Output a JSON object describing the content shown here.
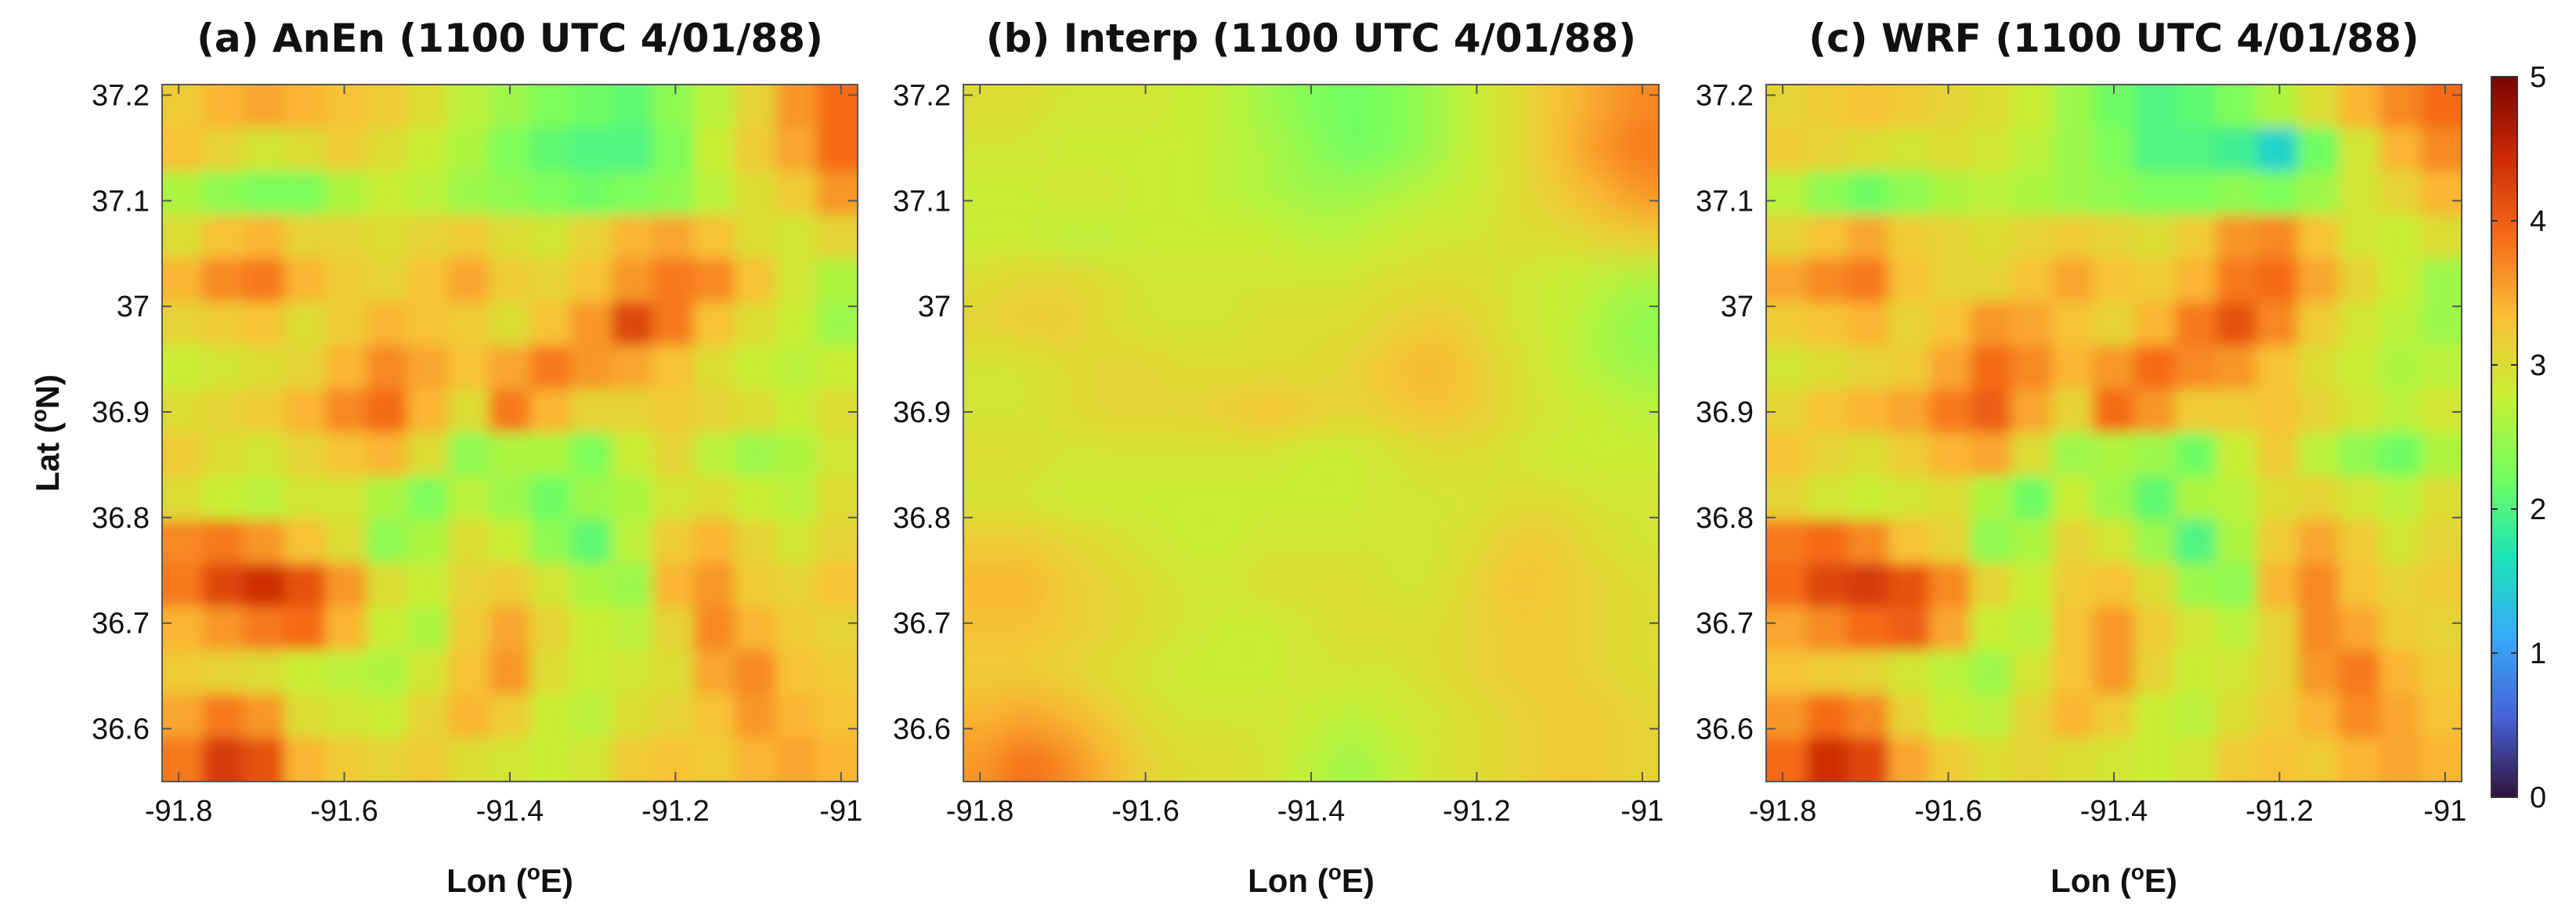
{
  "chart_data": {
    "type": "heatmap",
    "colorbar": {
      "range": [
        0,
        5
      ],
      "ticks": [
        "0",
        "1",
        "2",
        "3",
        "4",
        "5"
      ],
      "colormap": [
        "#30123b",
        "#4662d7",
        "#36aaf9",
        "#1ae4b6",
        "#72fe5e",
        "#c7ef34",
        "#fabf36",
        "#f66b19",
        "#cb2a04",
        "#7a0403"
      ]
    },
    "panels": [
      {
        "title": "(a) AnEn (1100 UTC 4/01/88)",
        "xlabel_main": "Lon (",
        "xlabel_sup": "o",
        "xlabel_end": "E)",
        "ylabel_main": "Lat (",
        "ylabel_sup": "o",
        "ylabel_end": "N)",
        "xlim": [
          -91.82,
          -90.98
        ],
        "ylim": [
          36.55,
          37.21
        ],
        "xticks": [
          "-91.8",
          "-91.6",
          "-91.4",
          "-91.2",
          "-91"
        ],
        "yticks": [
          "36.6",
          "36.7",
          "36.8",
          "36.9",
          "37",
          "37.1",
          "37.2"
        ],
        "field": [
          [
            3.2,
            3.4,
            3.5,
            3.4,
            3.3,
            3.2,
            3.0,
            2.7,
            2.5,
            2.3,
            2.2,
            2.1,
            2.4,
            2.7,
            3.1,
            3.6,
            3.9
          ],
          [
            3.3,
            3.1,
            2.9,
            3.0,
            3.2,
            3.0,
            2.8,
            2.6,
            2.3,
            2.1,
            2.0,
            2.0,
            2.3,
            2.8,
            3.2,
            3.5,
            3.9
          ],
          [
            2.6,
            2.4,
            2.3,
            2.3,
            2.6,
            2.8,
            2.7,
            2.5,
            2.4,
            2.3,
            2.2,
            2.3,
            2.4,
            2.7,
            3.0,
            3.2,
            3.6
          ],
          [
            3.0,
            3.3,
            3.4,
            3.1,
            3.1,
            3.0,
            3.1,
            3.2,
            3.0,
            2.9,
            3.1,
            3.4,
            3.5,
            3.3,
            3.0,
            2.9,
            3.1
          ],
          [
            3.4,
            3.7,
            3.8,
            3.4,
            3.2,
            3.1,
            3.3,
            3.5,
            3.2,
            3.1,
            3.3,
            3.6,
            3.8,
            3.7,
            3.3,
            2.9,
            2.6
          ],
          [
            3.1,
            3.2,
            3.3,
            3.0,
            3.2,
            3.4,
            3.3,
            3.2,
            3.0,
            3.3,
            3.6,
            4.2,
            3.8,
            3.3,
            3.0,
            2.8,
            2.5
          ],
          [
            2.8,
            2.9,
            3.0,
            3.1,
            3.4,
            3.7,
            3.5,
            3.3,
            3.5,
            3.8,
            3.6,
            3.5,
            3.3,
            3.0,
            2.8,
            2.7,
            2.8
          ],
          [
            3.0,
            3.1,
            3.2,
            3.4,
            3.7,
            3.9,
            3.4,
            3.0,
            3.8,
            3.4,
            3.1,
            3.1,
            3.2,
            3.1,
            3.0,
            2.8,
            3.0
          ],
          [
            3.2,
            3.0,
            2.9,
            3.1,
            3.3,
            3.4,
            3.0,
            2.4,
            2.6,
            2.6,
            2.3,
            2.8,
            3.1,
            2.7,
            2.5,
            2.6,
            2.9
          ],
          [
            3.0,
            2.8,
            2.7,
            2.9,
            2.9,
            2.6,
            2.3,
            2.7,
            2.5,
            2.2,
            2.5,
            2.6,
            2.9,
            3.0,
            2.8,
            2.7,
            3.0
          ],
          [
            3.7,
            3.8,
            3.6,
            3.3,
            3.0,
            2.4,
            2.6,
            3.0,
            2.8,
            2.4,
            2.1,
            2.7,
            3.2,
            3.4,
            3.1,
            2.9,
            3.1
          ],
          [
            3.8,
            4.2,
            4.4,
            4.1,
            3.6,
            3.0,
            2.8,
            3.1,
            3.2,
            2.9,
            2.6,
            2.5,
            3.4,
            3.6,
            3.2,
            3.1,
            3.3
          ],
          [
            3.4,
            3.6,
            3.8,
            3.9,
            3.4,
            2.8,
            2.6,
            3.2,
            3.5,
            3.1,
            2.8,
            2.7,
            3.1,
            3.7,
            3.4,
            3.2,
            3.1
          ],
          [
            3.2,
            3.1,
            3.0,
            2.8,
            2.7,
            2.6,
            2.9,
            3.3,
            3.6,
            3.0,
            2.8,
            2.9,
            3.0,
            3.5,
            3.7,
            3.3,
            3.2
          ],
          [
            3.5,
            3.8,
            3.6,
            3.0,
            2.9,
            2.8,
            3.1,
            3.4,
            3.2,
            2.8,
            2.7,
            3.0,
            3.1,
            3.3,
            3.6,
            3.4,
            3.3
          ],
          [
            3.8,
            4.3,
            4.1,
            3.4,
            3.2,
            3.1,
            3.2,
            3.0,
            2.9,
            2.8,
            2.9,
            3.2,
            3.3,
            3.2,
            3.4,
            3.5,
            3.4
          ]
        ]
      },
      {
        "title": "(b) Interp (1100 UTC 4/01/88)",
        "xlabel_main": "Lon (",
        "xlabel_sup": "o",
        "xlabel_end": "E)",
        "ylabel_main": "",
        "ylabel_sup": "",
        "ylabel_end": "",
        "xlim": [
          -91.82,
          -90.98
        ],
        "ylim": [
          36.55,
          37.21
        ],
        "xticks": [
          "-91.8",
          "-91.6",
          "-91.4",
          "-91.2",
          "-91"
        ],
        "yticks": [
          "36.6",
          "36.7",
          "36.8",
          "36.9",
          "37",
          "37.1",
          "37.2"
        ],
        "field": [
          [
            3.0,
            3.0,
            2.9,
            2.9,
            2.9,
            2.8,
            2.7,
            2.5,
            2.3,
            2.2,
            2.3,
            2.5,
            2.8,
            3.0,
            3.3,
            3.5,
            3.7
          ],
          [
            2.9,
            2.9,
            2.8,
            2.8,
            2.8,
            2.8,
            2.7,
            2.6,
            2.4,
            2.2,
            2.3,
            2.5,
            2.8,
            3.0,
            3.3,
            3.6,
            3.8
          ],
          [
            2.8,
            2.8,
            2.9,
            2.9,
            2.8,
            2.8,
            2.7,
            2.6,
            2.5,
            2.5,
            2.6,
            2.7,
            2.8,
            3.0,
            3.2,
            3.4,
            3.6
          ],
          [
            2.8,
            2.8,
            2.7,
            2.7,
            2.8,
            2.8,
            2.8,
            2.8,
            2.7,
            2.7,
            2.8,
            2.9,
            2.9,
            3.0,
            3.0,
            3.1,
            3.2
          ],
          [
            3.0,
            3.1,
            3.1,
            3.0,
            2.9,
            2.9,
            2.9,
            2.9,
            2.9,
            2.9,
            3.0,
            3.0,
            3.0,
            2.9,
            2.8,
            2.7,
            2.6
          ],
          [
            3.1,
            3.2,
            3.2,
            3.0,
            2.9,
            2.9,
            2.9,
            3.0,
            3.0,
            3.0,
            3.1,
            3.2,
            3.1,
            2.9,
            2.8,
            2.6,
            2.4
          ],
          [
            2.9,
            2.9,
            3.0,
            3.1,
            3.1,
            3.0,
            3.0,
            3.0,
            3.0,
            3.1,
            3.3,
            3.4,
            3.2,
            3.0,
            2.8,
            2.6,
            2.5
          ],
          [
            2.9,
            2.9,
            3.0,
            3.1,
            3.1,
            3.1,
            3.2,
            3.3,
            3.2,
            3.1,
            3.2,
            3.3,
            3.2,
            3.0,
            2.9,
            2.8,
            2.7
          ],
          [
            3.0,
            3.0,
            2.9,
            2.9,
            2.9,
            2.9,
            2.9,
            2.9,
            2.8,
            2.8,
            2.9,
            3.0,
            3.0,
            2.9,
            2.8,
            2.8,
            2.8
          ],
          [
            2.9,
            2.9,
            2.8,
            2.8,
            2.8,
            2.8,
            2.8,
            2.8,
            2.8,
            2.8,
            2.9,
            2.9,
            2.9,
            3.0,
            3.0,
            2.9,
            2.9
          ],
          [
            3.2,
            3.2,
            3.1,
            3.0,
            2.9,
            2.8,
            2.8,
            2.9,
            2.9,
            2.9,
            2.9,
            2.9,
            3.0,
            3.2,
            3.2,
            3.0,
            2.9
          ],
          [
            3.4,
            3.4,
            3.2,
            3.1,
            3.0,
            2.9,
            2.9,
            3.0,
            3.0,
            3.0,
            2.9,
            2.9,
            3.1,
            3.3,
            3.2,
            3.1,
            3.0
          ],
          [
            3.3,
            3.3,
            3.2,
            3.1,
            3.0,
            2.9,
            2.8,
            2.8,
            2.9,
            3.0,
            3.0,
            3.0,
            3.1,
            3.2,
            3.2,
            3.1,
            3.0
          ],
          [
            3.2,
            3.2,
            3.1,
            3.0,
            2.9,
            2.8,
            2.8,
            2.8,
            2.9,
            2.9,
            2.9,
            3.0,
            3.1,
            3.2,
            3.2,
            3.1,
            3.0
          ],
          [
            3.4,
            3.5,
            3.4,
            3.2,
            3.0,
            2.9,
            2.9,
            2.9,
            2.8,
            2.7,
            2.8,
            2.9,
            3.0,
            3.1,
            3.2,
            3.2,
            3.1
          ],
          [
            3.6,
            3.9,
            3.7,
            3.4,
            3.1,
            3.0,
            3.0,
            2.9,
            2.7,
            2.5,
            2.7,
            2.9,
            3.0,
            3.1,
            3.2,
            3.2,
            3.1
          ]
        ]
      },
      {
        "title": "(c) WRF (1100 UTC 4/01/88)",
        "xlabel_main": "Lon (",
        "xlabel_sup": "o",
        "xlabel_end": "E)",
        "ylabel_main": "",
        "ylabel_sup": "",
        "ylabel_end": "",
        "xlim": [
          -91.82,
          -90.98
        ],
        "ylim": [
          36.55,
          37.21
        ],
        "xticks": [
          "-91.8",
          "-91.6",
          "-91.4",
          "-91.2",
          "-91"
        ],
        "yticks": [
          "36.6",
          "36.7",
          "36.8",
          "36.9",
          "37",
          "37.1",
          "37.2"
        ],
        "field": [
          [
            3.1,
            3.2,
            3.3,
            3.2,
            3.1,
            3.0,
            2.8,
            2.5,
            2.2,
            2.0,
            2.1,
            2.3,
            2.6,
            3.0,
            3.4,
            3.7,
            3.9
          ],
          [
            3.2,
            3.1,
            3.0,
            2.9,
            3.0,
            2.9,
            2.7,
            2.5,
            2.3,
            2.0,
            2.0,
            1.9,
            1.5,
            2.2,
            2.9,
            3.4,
            3.7
          ],
          [
            2.7,
            2.4,
            2.2,
            2.4,
            2.6,
            2.7,
            2.6,
            2.5,
            2.4,
            2.3,
            2.3,
            2.4,
            2.3,
            2.5,
            2.9,
            3.1,
            3.4
          ],
          [
            3.1,
            3.3,
            3.5,
            3.2,
            3.1,
            3.0,
            3.1,
            3.2,
            3.1,
            3.0,
            3.2,
            3.6,
            3.7,
            3.3,
            2.9,
            2.8,
            3.0
          ],
          [
            3.5,
            3.7,
            3.8,
            3.3,
            3.1,
            3.1,
            3.3,
            3.5,
            3.3,
            3.2,
            3.4,
            3.8,
            3.9,
            3.5,
            3.1,
            2.8,
            2.5
          ],
          [
            3.2,
            3.3,
            3.4,
            3.1,
            3.3,
            3.6,
            3.5,
            3.3,
            3.1,
            3.4,
            3.8,
            4.1,
            3.7,
            3.2,
            2.9,
            2.7,
            2.5
          ],
          [
            2.9,
            3.0,
            3.1,
            3.2,
            3.5,
            3.9,
            3.7,
            3.4,
            3.6,
            3.9,
            3.7,
            3.6,
            3.3,
            3.0,
            2.8,
            2.6,
            2.7
          ],
          [
            3.1,
            3.3,
            3.4,
            3.5,
            3.8,
            4.0,
            3.5,
            3.1,
            3.9,
            3.6,
            3.2,
            3.2,
            3.3,
            3.1,
            2.9,
            2.7,
            2.9
          ],
          [
            3.3,
            3.1,
            3.0,
            3.2,
            3.4,
            3.5,
            3.0,
            2.5,
            2.6,
            2.5,
            2.2,
            2.8,
            3.2,
            2.7,
            2.4,
            2.2,
            2.6
          ],
          [
            3.1,
            2.9,
            2.8,
            2.9,
            3.0,
            2.6,
            2.2,
            2.8,
            2.5,
            2.1,
            2.6,
            2.7,
            3.0,
            3.1,
            2.9,
            2.7,
            3.0
          ],
          [
            3.8,
            3.9,
            3.7,
            3.3,
            3.1,
            2.4,
            2.6,
            3.1,
            2.9,
            2.5,
            2.0,
            2.6,
            3.2,
            3.5,
            3.2,
            2.9,
            3.1
          ],
          [
            3.9,
            4.2,
            4.3,
            4.1,
            3.7,
            3.1,
            2.8,
            3.2,
            3.3,
            3.0,
            2.5,
            2.4,
            3.4,
            3.7,
            3.3,
            3.1,
            3.2
          ],
          [
            3.5,
            3.7,
            3.9,
            4.0,
            3.5,
            2.8,
            2.7,
            3.3,
            3.6,
            3.2,
            2.9,
            2.7,
            3.1,
            3.7,
            3.5,
            3.2,
            3.1
          ],
          [
            3.3,
            3.2,
            3.1,
            2.9,
            2.7,
            2.5,
            2.9,
            3.3,
            3.6,
            3.1,
            2.8,
            2.9,
            3.1,
            3.6,
            3.8,
            3.4,
            3.2
          ],
          [
            3.6,
            3.9,
            3.7,
            3.1,
            2.8,
            2.7,
            3.1,
            3.4,
            3.2,
            2.8,
            2.7,
            3.0,
            3.2,
            3.4,
            3.7,
            3.5,
            3.3
          ],
          [
            3.9,
            4.4,
            4.2,
            3.5,
            3.2,
            3.0,
            3.1,
            3.0,
            2.9,
            2.8,
            2.9,
            3.2,
            3.3,
            3.2,
            3.4,
            3.5,
            3.4
          ]
        ]
      }
    ]
  }
}
